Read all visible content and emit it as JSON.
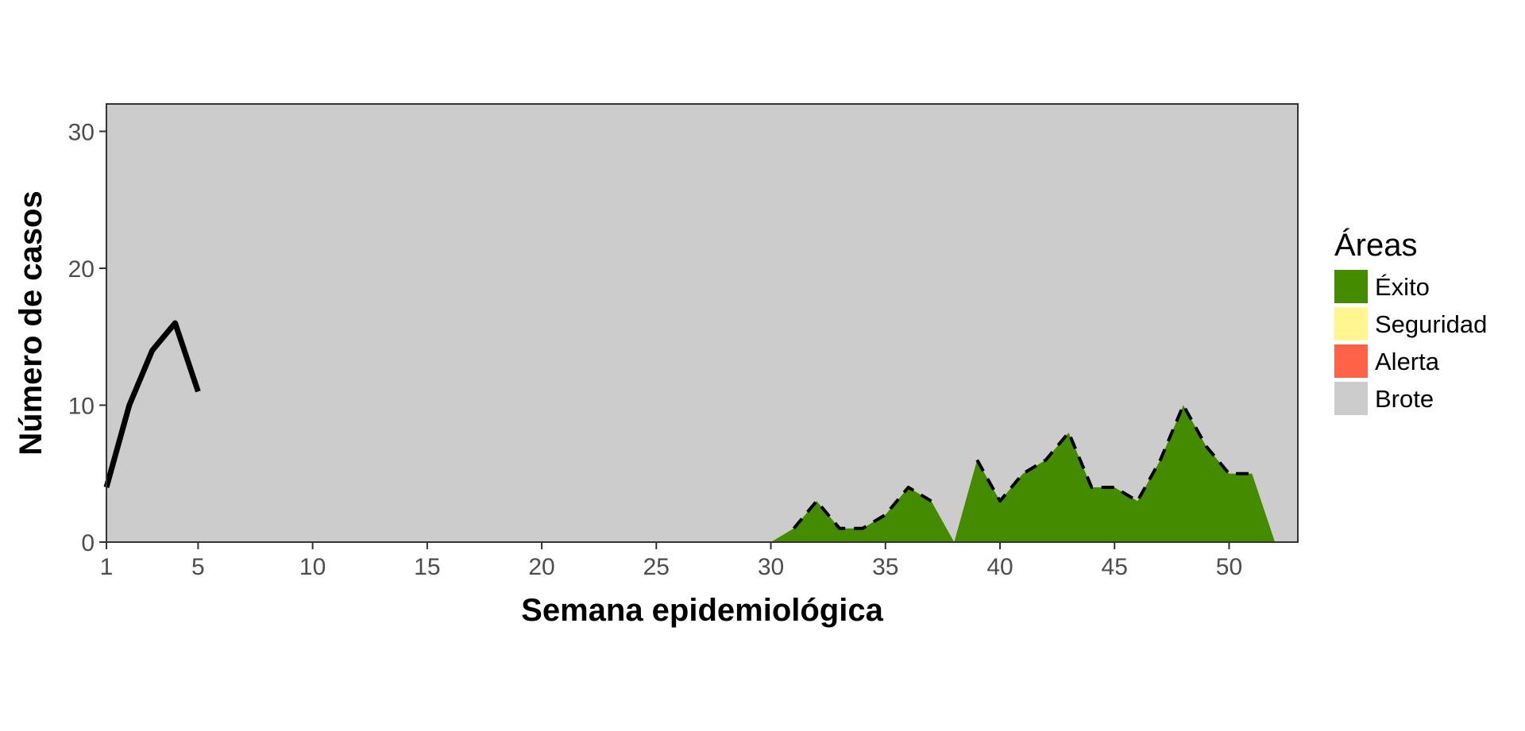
{
  "chart_data": {
    "type": "area",
    "title": "",
    "xlabel": "Semana epidemiológica",
    "ylabel": "Número de casos",
    "xlim": [
      1,
      53
    ],
    "ylim": [
      0,
      32
    ],
    "x_ticks": [
      1,
      5,
      10,
      15,
      20,
      25,
      30,
      35,
      40,
      45,
      50
    ],
    "y_ticks": [
      0,
      10,
      20,
      30
    ],
    "grid": false,
    "legend": {
      "title": "Áreas",
      "position": "right",
      "entries": [
        {
          "name": "Éxito",
          "color": "#458B00"
        },
        {
          "name": "Seguridad",
          "color": "#FFF68F"
        },
        {
          "name": "Alerta",
          "color": "#FF6347"
        },
        {
          "name": "Brote",
          "color": "#CCCCCC"
        }
      ]
    },
    "background_area": {
      "name": "Brote",
      "color": "#CCCCCC"
    },
    "success_area": {
      "name": "Éxito",
      "color": "#458B00",
      "x": [
        30,
        31,
        32,
        33,
        34,
        35,
        36,
        37,
        38,
        39,
        40,
        41,
        42,
        43,
        44,
        45,
        46,
        47,
        48,
        49,
        50,
        51,
        52
      ],
      "y": [
        0,
        1,
        3,
        1,
        1,
        2,
        4,
        3,
        0,
        6,
        3,
        5,
        6,
        8,
        4,
        4,
        3,
        6,
        10,
        7,
        5,
        5,
        0
      ]
    },
    "series": [
      {
        "style": "solid",
        "color": "#000000",
        "x": [
          1,
          2,
          3,
          4,
          5
        ],
        "y": [
          4,
          10,
          14,
          16,
          11
        ]
      },
      {
        "style": "dashed",
        "color": "#000000",
        "x": [
          31,
          32,
          33,
          34,
          35,
          36,
          37,
          38,
          39,
          40,
          41,
          42,
          43,
          44,
          45,
          46,
          47,
          48,
          49,
          50,
          51
        ],
        "y": [
          1,
          3,
          1,
          1,
          2,
          4,
          3,
          null,
          6,
          3,
          5,
          6,
          8,
          4,
          4,
          3,
          6,
          10,
          7,
          5,
          5
        ]
      }
    ]
  }
}
